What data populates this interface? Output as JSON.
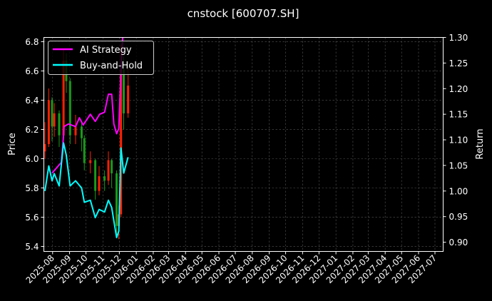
{
  "chart_data": {
    "type": "line",
    "title": "cnstock [600707.SH]",
    "ylabel_left": "Price",
    "ylabel_right": "Return",
    "xlim": [
      "2025-07-16",
      "2027-07-16"
    ],
    "ylim_left": [
      5.366,
      6.829
    ],
    "ylim_right": [
      0.882,
      1.3
    ],
    "yticks_left": [
      "5.4",
      "5.6",
      "5.8",
      "6.0",
      "6.2",
      "6.4",
      "6.6",
      "6.8"
    ],
    "yticks_right": [
      "0.90",
      "0.95",
      "1.00",
      "1.05",
      "1.10",
      "1.15",
      "1.20",
      "1.25",
      "1.30"
    ],
    "xticks": [
      "2025-08",
      "2025-09",
      "2025-10",
      "2025-11",
      "2025-12",
      "2026-01",
      "2026-02",
      "2026-03",
      "2026-04",
      "2026-05",
      "2026-06",
      "2026-07",
      "2026-08",
      "2026-09",
      "2026-10",
      "2026-11",
      "2026-12",
      "2027-01",
      "2027-02",
      "2027-03",
      "2027-04",
      "2027-05",
      "2027-06",
      "2027-07"
    ],
    "grid": true,
    "legend_placement": "top-left",
    "candles": [
      {
        "date": "2025-07-18",
        "open": 6.05,
        "close": 6.1,
        "high": 6.25,
        "low": 6.0
      },
      {
        "date": "2025-07-25",
        "open": 6.1,
        "close": 6.4,
        "high": 6.48,
        "low": 6.08
      },
      {
        "date": "2025-07-31",
        "open": 6.4,
        "close": 6.22,
        "high": 6.42,
        "low": 6.12
      },
      {
        "date": "2025-08-04",
        "open": 6.22,
        "close": 6.31,
        "high": 6.38,
        "low": 6.15
      },
      {
        "date": "2025-08-13",
        "open": 6.31,
        "close": 6.16,
        "high": 6.33,
        "low": 6.08
      },
      {
        "date": "2025-08-21",
        "open": 6.16,
        "close": 6.67,
        "high": 6.75,
        "low": 6.14
      },
      {
        "date": "2025-08-26",
        "open": 6.67,
        "close": 6.53,
        "high": 6.72,
        "low": 6.45
      },
      {
        "date": "2025-09-02",
        "open": 6.53,
        "close": 6.16,
        "high": 6.55,
        "low": 6.1
      },
      {
        "date": "2025-09-12",
        "open": 6.16,
        "close": 6.22,
        "high": 6.3,
        "low": 6.1
      },
      {
        "date": "2025-09-23",
        "open": 6.22,
        "close": 6.14,
        "high": 6.26,
        "low": 6.05
      },
      {
        "date": "2025-09-28",
        "open": 6.14,
        "close": 5.97,
        "high": 6.16,
        "low": 5.92
      },
      {
        "date": "2025-10-09",
        "open": 5.97,
        "close": 5.99,
        "high": 6.05,
        "low": 5.9
      },
      {
        "date": "2025-10-18",
        "open": 5.99,
        "close": 5.78,
        "high": 6.0,
        "low": 5.72
      },
      {
        "date": "2025-10-25",
        "open": 5.78,
        "close": 5.88,
        "high": 5.95,
        "low": 5.75
      },
      {
        "date": "2025-11-04",
        "open": 5.88,
        "close": 5.85,
        "high": 5.92,
        "low": 5.78
      },
      {
        "date": "2025-11-11",
        "open": 5.85,
        "close": 5.99,
        "high": 6.05,
        "low": 5.82
      },
      {
        "date": "2025-11-17",
        "open": 5.99,
        "close": 5.9,
        "high": 6.0,
        "low": 5.8
      },
      {
        "date": "2025-11-26",
        "open": 5.9,
        "close": 5.54,
        "high": 5.92,
        "low": 5.48
      },
      {
        "date": "2025-11-30",
        "open": 5.54,
        "close": 5.62,
        "high": 5.68,
        "low": 5.45
      },
      {
        "date": "2025-12-04",
        "open": 5.62,
        "close": 6.61,
        "high": 6.78,
        "low": 5.6
      },
      {
        "date": "2025-12-09",
        "open": 6.61,
        "close": 6.31,
        "high": 6.7,
        "low": 6.2
      },
      {
        "date": "2025-12-17",
        "open": 6.31,
        "close": 6.5,
        "high": 6.62,
        "low": 6.28
      }
    ],
    "series": [
      {
        "name": "AI Strategy",
        "color": "#ff00ff",
        "axis": "right",
        "x": [
          "2025-07-31",
          "2025-08-17",
          "2025-08-21",
          "2025-08-22",
          "2025-08-30",
          "2025-09-12",
          "2025-09-19",
          "2025-09-26",
          "2025-10-09",
          "2025-10-18",
          "2025-10-26",
          "2025-11-04",
          "2025-11-11",
          "2025-11-17",
          "2025-11-21",
          "2025-11-26",
          "2025-11-30",
          "2025-12-04",
          "2025-12-07"
        ],
        "y": [
          1.035,
          1.056,
          1.108,
          1.126,
          1.131,
          1.126,
          1.143,
          1.129,
          1.15,
          1.136,
          1.15,
          1.154,
          1.189,
          1.189,
          1.131,
          1.112,
          1.122,
          1.233,
          1.3
        ]
      },
      {
        "name": "Buy-and-Hold",
        "color": "#00ffff",
        "axis": "right",
        "x": [
          "2025-07-18",
          "2025-07-25",
          "2025-07-31",
          "2025-08-04",
          "2025-08-13",
          "2025-08-21",
          "2025-08-26",
          "2025-09-02",
          "2025-09-12",
          "2025-09-23",
          "2025-09-28",
          "2025-10-09",
          "2025-10-18",
          "2025-10-25",
          "2025-11-04",
          "2025-11-11",
          "2025-11-17",
          "2025-11-26",
          "2025-11-30",
          "2025-12-04",
          "2025-12-09",
          "2025-12-17"
        ],
        "y": [
          1.0,
          1.049,
          1.02,
          1.034,
          1.01,
          1.094,
          1.07,
          1.01,
          1.02,
          1.006,
          0.978,
          0.982,
          0.948,
          0.964,
          0.959,
          0.982,
          0.968,
          0.909,
          0.922,
          1.084,
          1.035,
          1.066
        ]
      }
    ],
    "colors": {
      "up": "#ff2000",
      "down": "#1a9a1a",
      "background": "#000000",
      "grid": "#555555"
    }
  }
}
